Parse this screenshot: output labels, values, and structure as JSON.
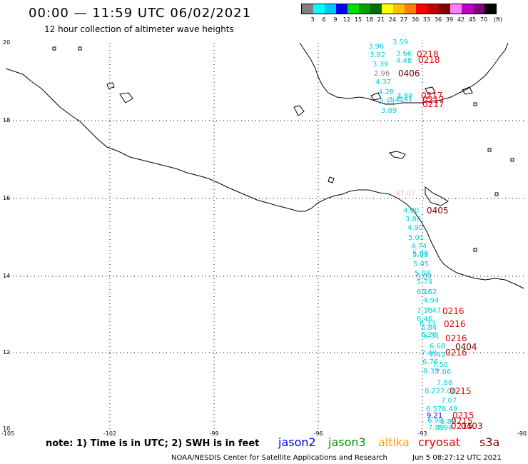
{
  "header": {
    "title": "00:00 — 11:59 UTC 06/02/2021",
    "subtitle": "12 hour collection of altimeter wave heights"
  },
  "legend": {
    "colors": [
      "#7f7f7f",
      "#00ffff",
      "#00c8ff",
      "#0000ff",
      "#00e000",
      "#00a000",
      "#007000",
      "#ffff00",
      "#ffc000",
      "#ff8000",
      "#ff0000",
      "#c00000",
      "#800000",
      "#ff80ff",
      "#c000c0",
      "#800080",
      "#000000"
    ],
    "labels": [
      "3",
      "6",
      "9",
      "12",
      "15",
      "18",
      "21",
      "24",
      "27",
      "30",
      "33",
      "36",
      "39",
      "42",
      "45",
      "70"
    ],
    "unit": "(ft)"
  },
  "axes": {
    "lat_labels": [
      "20",
      "18",
      "16",
      "14",
      "12",
      "10"
    ],
    "lon_labels": [
      "-105",
      "-102",
      "-99",
      "-96",
      "-93",
      "-90"
    ]
  },
  "footer": {
    "note": "note: 1) Time is in UTC; 2) SWH is in feet",
    "satellites": [
      {
        "name": "jason2",
        "color": "#0000e0"
      },
      {
        "name": "jason3",
        "color": "#009000"
      },
      {
        "name": "altika",
        "color": "#ffa000"
      },
      {
        "name": "cryosat",
        "color": "#e00000"
      },
      {
        "name": "s3a",
        "color": "#800000"
      }
    ],
    "credit": "NOAA/NESDIS Center for Satellite Applications and Research",
    "timestamp": "Jun  5 08:27:12 UTC 2021"
  },
  "observations": [
    {
      "v": "3.59",
      "c": "#00d0e0"
    },
    {
      "v": "3.96",
      "c": "#00d0e0"
    },
    {
      "v": "3.66",
      "c": "#00d0e0"
    },
    {
      "v": "3.82",
      "c": "#00d0e0"
    },
    {
      "v": "4.48",
      "c": "#00d0e0"
    },
    {
      "v": "3.39",
      "c": "#00d0e0"
    },
    {
      "v": "2.96",
      "c": "#7f7f7f"
    },
    {
      "v": "4.37",
      "c": "#00d0e0"
    },
    {
      "v": "4.28",
      "c": "#00d0e0"
    },
    {
      "v": "3.99",
      "c": "#00d0e0"
    },
    {
      "v": "3.13",
      "c": "#00d0e0"
    },
    {
      "v": "3.41",
      "c": "#00d0e0"
    },
    {
      "v": "3.41",
      "c": "#00d0e0"
    },
    {
      "v": "3.89",
      "c": "#00d0e0"
    },
    {
      "v": "47.07",
      "c": "#ffb0ff"
    },
    {
      "v": "4.00",
      "c": "#00d0e0"
    },
    {
      "v": "3.86",
      "c": "#00d0e0"
    },
    {
      "v": "4.90",
      "c": "#00d0e0"
    },
    {
      "v": "5.01",
      "c": "#00d0e0"
    },
    {
      "v": "4.74",
      "c": "#00d0e0"
    },
    {
      "v": "5.08",
      "c": "#00d0e0"
    },
    {
      "v": "5.03",
      "c": "#00d0e0"
    },
    {
      "v": "5.05",
      "c": "#00d0e0"
    },
    {
      "v": "5.08",
      "c": "#00d0e0"
    },
    {
      "v": "5.02",
      "c": "#00d0e0"
    },
    {
      "v": "5.74",
      "c": "#00d0e0"
    },
    {
      "v": "6.15",
      "c": "#00d0e0"
    },
    {
      "v": "5.62",
      "c": "#00d0e0"
    },
    {
      "v": "4.94",
      "c": "#00d0e0"
    },
    {
      "v": "7.18",
      "c": "#00d0e0"
    },
    {
      "v": "7.47",
      "c": "#00d0e0"
    },
    {
      "v": "6.46",
      "c": "#00d0e0"
    },
    {
      "v": "6.33",
      "c": "#00d0e0"
    },
    {
      "v": "5.84",
      "c": "#00d0e0"
    },
    {
      "v": "6.20",
      "c": "#00d0e0"
    },
    {
      "v": "6.31",
      "c": "#00d0e0"
    },
    {
      "v": "6.68",
      "c": "#00d0e0"
    },
    {
      "v": "7.49",
      "c": "#00d0e0"
    },
    {
      "v": "7.43",
      "c": "#00d0e0"
    },
    {
      "v": "6.76",
      "c": "#00d0e0"
    },
    {
      "v": "7.50",
      "c": "#00d0e0"
    },
    {
      "v": "8.39",
      "c": "#00d0e0"
    },
    {
      "v": "7.66",
      "c": "#00d0e0"
    },
    {
      "v": "7.88",
      "c": "#00d0e0"
    },
    {
      "v": "8.22",
      "c": "#00d0e0"
    },
    {
      "v": "7.00",
      "c": "#00d0e0"
    },
    {
      "v": "7.07",
      "c": "#00d0e0"
    },
    {
      "v": "6.57",
      "c": "#00d0e0"
    },
    {
      "v": "8.49",
      "c": "#00d0e0"
    },
    {
      "v": "9.21",
      "c": "#0000e0"
    },
    {
      "v": "6.98",
      "c": "#00d0e0"
    },
    {
      "v": "6.88",
      "c": "#00d0e0"
    },
    {
      "v": "7.89",
      "c": "#00d0e0"
    },
    {
      "v": "7.94",
      "c": "#00d0e0"
    }
  ],
  "time_labels": [
    {
      "t": "0218",
      "c": "#e00000"
    },
    {
      "t": "0218",
      "c": "#e00000"
    },
    {
      "t": "0406",
      "c": "#800000"
    },
    {
      "t": "0217",
      "c": "#e00000"
    },
    {
      "t": "0217",
      "c": "#e00000"
    },
    {
      "t": "0217",
      "c": "#e00000"
    },
    {
      "t": "0405",
      "c": "#800000"
    },
    {
      "t": "0216",
      "c": "#e00000"
    },
    {
      "t": "0216",
      "c": "#e00000"
    },
    {
      "t": "0216",
      "c": "#e00000"
    },
    {
      "t": "0404",
      "c": "#800000"
    },
    {
      "t": "0216",
      "c": "#e00000"
    },
    {
      "t": "0215",
      "c": "#e00000"
    },
    {
      "t": "0215",
      "c": "#e00000"
    },
    {
      "t": "0215",
      "c": "#e00000"
    },
    {
      "t": "0215",
      "c": "#e00000"
    },
    {
      "t": "0403",
      "c": "#800000"
    }
  ]
}
